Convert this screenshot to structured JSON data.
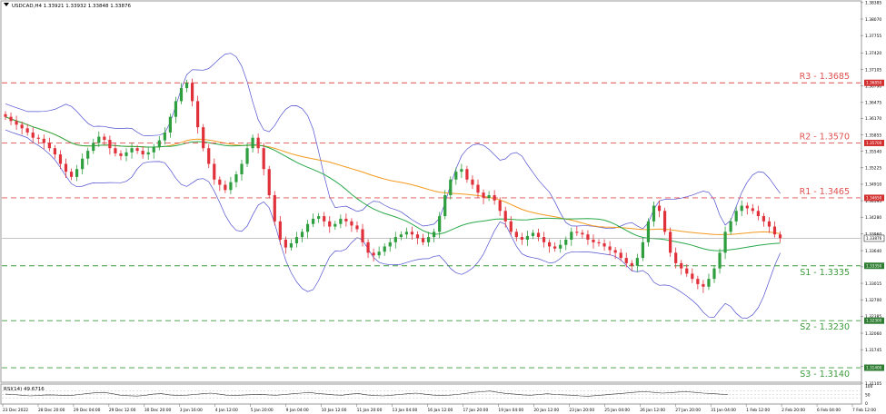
{
  "symbol_header": "USDCAD,H4  1.33921 1.33932 1.33848 1.33876",
  "rsi_header": "RSI(14) 49.6716",
  "current_price_tag": "1.33876",
  "chart_data": [
    {
      "type": "candlestick",
      "title": "USDCAD,H4",
      "ohlc_last": {
        "open": 1.33921,
        "high": 1.33932,
        "low": 1.33848,
        "close": 1.33876
      },
      "ylim": [
        1.3114,
        1.384
      ],
      "y_ticks": [
        "1.38385",
        "1.38070",
        "1.37755",
        "1.37420",
        "1.37105",
        "1.36790",
        "1.36475",
        "1.36170",
        "1.35855",
        "1.35540",
        "1.35225",
        "1.34910",
        "1.34595",
        "1.34280",
        "1.33960",
        "1.33640",
        "1.33330",
        "1.33015",
        "1.32700",
        "1.32385",
        "1.32060",
        "1.31745",
        "1.31430",
        "1.31105"
      ],
      "x_ticks": [
        "23 Dec 2022",
        "28 Dec 20:00",
        "29 Dec 04:00",
        "29 Dec 12:00",
        "30 Dec 20:00",
        "3 Jan 16:00",
        "4 Jan 12:00",
        "5 Jan 20:00",
        "9 Jan 04:00",
        "10 Jan 12:00",
        "11 Jan 20:00",
        "13 Jan 04:00",
        "16 Jan 12:00",
        "17 Jan 20:00",
        "19 Jan 04:00",
        "20 Jan 12:00",
        "23 Jan 20:00",
        "25 Jan 04:00",
        "26 Jan 12:00",
        "27 Jan 20:00",
        "31 Jan 04:00",
        "1 Feb 12:00",
        "2 Feb 20:00",
        "6 Feb 04:00",
        "7 Feb 12:00"
      ],
      "levels": [
        {
          "label": "R3 - 1.3685",
          "value": 1.3685,
          "tag": "1.36850",
          "kind": "resistance",
          "color": "#e05050"
        },
        {
          "label": "R2 - 1.3570",
          "value": 1.357,
          "tag": "1.35700",
          "kind": "resistance",
          "color": "#e05050"
        },
        {
          "label": "R1 - 1.3465",
          "value": 1.3465,
          "tag": "1.34650",
          "kind": "resistance",
          "color": "#e05050"
        },
        {
          "label": "S1 - 1.3335",
          "value": 1.3335,
          "tag": "1.33350",
          "kind": "support",
          "color": "#3a9a3a"
        },
        {
          "label": "S2 - 1.3230",
          "value": 1.323,
          "tag": "1.32300",
          "kind": "support",
          "color": "#3a9a3a"
        },
        {
          "label": "S3 - 1.3140",
          "value": 1.314,
          "tag": "1.31400",
          "kind": "support",
          "color": "#3a9a3a"
        }
      ],
      "current_price": 1.33876,
      "series_colors": {
        "bull": "#2e9e3e",
        "bear": "#e0303a",
        "bollinger": "#5050d0",
        "ma_slow": "#f39a1e",
        "ma_fast": "#2aa84a"
      },
      "close_points": [
        1.362,
        1.3612,
        1.3605,
        1.3598,
        1.359,
        1.358,
        1.3578,
        1.357,
        1.356,
        1.3548,
        1.353,
        1.3515,
        1.3505,
        1.352,
        1.354,
        1.3555,
        1.357,
        1.3582,
        1.3576,
        1.356,
        1.355,
        1.3545,
        1.3552,
        1.356,
        1.3555,
        1.3548,
        1.3552,
        1.3562,
        1.3575,
        1.359,
        1.362,
        1.365,
        1.3675,
        1.3685,
        1.365,
        1.36,
        1.356,
        1.353,
        1.35,
        1.349,
        1.348,
        1.3495,
        1.351,
        1.353,
        1.356,
        1.358,
        1.356,
        1.352,
        1.347,
        1.342,
        1.3385,
        1.337,
        1.3378,
        1.339,
        1.34,
        1.3415,
        1.3425,
        1.343,
        1.342,
        1.341,
        1.3415,
        1.3425,
        1.342,
        1.3412,
        1.3405,
        1.338,
        1.336,
        1.3355,
        1.3362,
        1.3372,
        1.338,
        1.339,
        1.3395,
        1.34,
        1.3395,
        1.3388,
        1.338,
        1.339,
        1.34,
        1.343,
        1.347,
        1.35,
        1.3515,
        1.352,
        1.35,
        1.349,
        1.3475,
        1.3465,
        1.347,
        1.346,
        1.344,
        1.342,
        1.34,
        1.339,
        1.3385,
        1.3392,
        1.3398,
        1.339,
        1.338,
        1.3372,
        1.3368,
        1.3375,
        1.3385,
        1.34,
        1.3398,
        1.3395,
        1.3385,
        1.338,
        1.3378,
        1.3372,
        1.3365,
        1.336,
        1.335,
        1.334,
        1.3335,
        1.335,
        1.338,
        1.342,
        1.345,
        1.344,
        1.34,
        1.336,
        1.334,
        1.333,
        1.332,
        1.331,
        1.33,
        1.3295,
        1.331,
        1.333,
        1.336,
        1.34,
        1.342,
        1.344,
        1.345,
        1.3445,
        1.344,
        1.343,
        1.342,
        1.341,
        1.3395,
        1.3388
      ],
      "rsi": {
        "period": 14,
        "value": 49.6716,
        "levels": [
          70,
          50,
          30
        ],
        "axis_ticks": [
          "100",
          "50",
          "0"
        ],
        "points": [
          52,
          50,
          46,
          42,
          44,
          48,
          47,
          45,
          44,
          50,
          56,
          60,
          62,
          55,
          46,
          43,
          41,
          45,
          52,
          55,
          48,
          44,
          46,
          50,
          54,
          58,
          52,
          46,
          44,
          47,
          49,
          51,
          48,
          46,
          50,
          54,
          58,
          62,
          56,
          52,
          48,
          46,
          52,
          56,
          48,
          44,
          42,
          46,
          50,
          54,
          58,
          52,
          47,
          44,
          46,
          50,
          56,
          62,
          66,
          70,
          62,
          56,
          52,
          48,
          46,
          50,
          54,
          50,
          48,
          46,
          42,
          40,
          44,
          48,
          52,
          56,
          60,
          64,
          66,
          62,
          58,
          60,
          64,
          66,
          62,
          58,
          56,
          52,
          50
        ]
      }
    }
  ]
}
